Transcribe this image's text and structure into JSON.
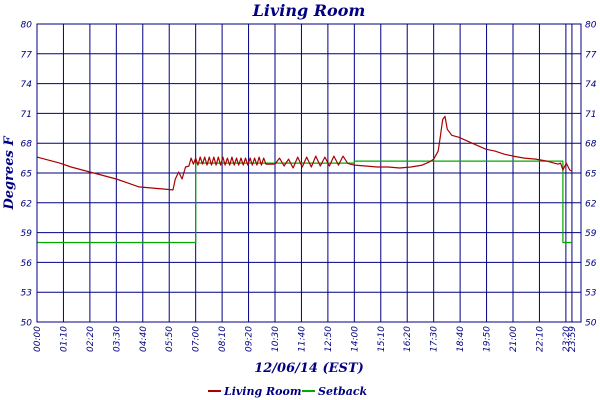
{
  "chart_data": {
    "type": "line",
    "title": "Living Room",
    "xlabel": "12/06/14 (EST)",
    "ylabel": "Degrees F",
    "x_unit": "hours",
    "xlim": [
      0,
      24
    ],
    "ylim": [
      50,
      80
    ],
    "y_ticks": [
      50,
      53,
      56,
      59,
      62,
      65,
      68,
      71,
      74,
      77,
      80
    ],
    "x_ticks": [
      {
        "t": 0,
        "label": "00:00"
      },
      {
        "t": 1.1667,
        "label": "01:10"
      },
      {
        "t": 2.3333,
        "label": "02:20"
      },
      {
        "t": 3.5,
        "label": "03:30"
      },
      {
        "t": 4.6667,
        "label": "04:40"
      },
      {
        "t": 5.8333,
        "label": "05:50"
      },
      {
        "t": 7.0,
        "label": "07:00"
      },
      {
        "t": 8.1667,
        "label": "08:10"
      },
      {
        "t": 9.3333,
        "label": "09:20"
      },
      {
        "t": 10.5,
        "label": "10:30"
      },
      {
        "t": 11.6667,
        "label": "11:40"
      },
      {
        "t": 12.8333,
        "label": "12:50"
      },
      {
        "t": 14.0,
        "label": "14:00"
      },
      {
        "t": 15.1667,
        "label": "15:10"
      },
      {
        "t": 16.3333,
        "label": "16:20"
      },
      {
        "t": 17.5,
        "label": "17:30"
      },
      {
        "t": 18.6667,
        "label": "18:40"
      },
      {
        "t": 19.8333,
        "label": "19:50"
      },
      {
        "t": 21.0,
        "label": "21:00"
      },
      {
        "t": 22.1667,
        "label": "22:10"
      },
      {
        "t": 23.3333,
        "label": "23:20"
      },
      {
        "t": 23.6,
        "label": "23:59"
      }
    ],
    "grid": true,
    "legend_position": "bottom",
    "series": [
      {
        "name": "Living Room",
        "color": "#aa0000",
        "points": [
          [
            0,
            66.6
          ],
          [
            0.5,
            66.3
          ],
          [
            1.0,
            66.0
          ],
          [
            1.5,
            65.6
          ],
          [
            2.0,
            65.3
          ],
          [
            2.5,
            65.0
          ],
          [
            3.0,
            64.7
          ],
          [
            3.5,
            64.4
          ],
          [
            4.0,
            64.0
          ],
          [
            4.5,
            63.6
          ],
          [
            5.0,
            63.5
          ],
          [
            5.5,
            63.4
          ],
          [
            6.0,
            63.3
          ],
          [
            6.1,
            64.4
          ],
          [
            6.25,
            65.1
          ],
          [
            6.4,
            64.4
          ],
          [
            6.55,
            65.6
          ],
          [
            6.7,
            65.7
          ],
          [
            6.8,
            66.5
          ],
          [
            6.9,
            65.9
          ],
          [
            7.0,
            66.5
          ],
          [
            7.1,
            65.8
          ],
          [
            7.2,
            66.6
          ],
          [
            7.3,
            65.9
          ],
          [
            7.4,
            66.6
          ],
          [
            7.5,
            65.8
          ],
          [
            7.6,
            66.6
          ],
          [
            7.7,
            65.8
          ],
          [
            7.8,
            66.6
          ],
          [
            7.9,
            65.8
          ],
          [
            8.0,
            66.6
          ],
          [
            8.1,
            65.8
          ],
          [
            8.2,
            66.6
          ],
          [
            8.3,
            65.8
          ],
          [
            8.4,
            66.5
          ],
          [
            8.5,
            65.8
          ],
          [
            8.6,
            66.6
          ],
          [
            8.7,
            65.8
          ],
          [
            8.8,
            66.5
          ],
          [
            8.9,
            65.8
          ],
          [
            9.0,
            66.5
          ],
          [
            9.1,
            65.8
          ],
          [
            9.2,
            66.5
          ],
          [
            9.3,
            65.8
          ],
          [
            9.4,
            66.5
          ],
          [
            9.5,
            65.8
          ],
          [
            9.6,
            66.5
          ],
          [
            9.7,
            65.8
          ],
          [
            9.8,
            66.6
          ],
          [
            9.9,
            65.8
          ],
          [
            10.0,
            66.5
          ],
          [
            10.1,
            65.9
          ],
          [
            10.5,
            65.9
          ],
          [
            10.7,
            66.5
          ],
          [
            10.9,
            65.7
          ],
          [
            11.1,
            66.4
          ],
          [
            11.3,
            65.5
          ],
          [
            11.5,
            66.6
          ],
          [
            11.7,
            65.6
          ],
          [
            11.9,
            66.6
          ],
          [
            12.1,
            65.6
          ],
          [
            12.3,
            66.7
          ],
          [
            12.5,
            65.7
          ],
          [
            12.7,
            66.6
          ],
          [
            12.9,
            65.7
          ],
          [
            13.1,
            66.7
          ],
          [
            13.3,
            65.8
          ],
          [
            13.5,
            66.7
          ],
          [
            13.7,
            66.0
          ],
          [
            13.8,
            65.9
          ],
          [
            14.0,
            65.8
          ],
          [
            14.5,
            65.7
          ],
          [
            15.0,
            65.6
          ],
          [
            15.5,
            65.6
          ],
          [
            16.0,
            65.5
          ],
          [
            16.5,
            65.6
          ],
          [
            17.0,
            65.8
          ],
          [
            17.3,
            66.1
          ],
          [
            17.5,
            66.4
          ],
          [
            17.7,
            67.2
          ],
          [
            17.8,
            68.8
          ],
          [
            17.9,
            70.4
          ],
          [
            18.0,
            70.7
          ],
          [
            18.1,
            69.4
          ],
          [
            18.3,
            68.8
          ],
          [
            18.6,
            68.6
          ],
          [
            19.0,
            68.2
          ],
          [
            19.4,
            67.8
          ],
          [
            19.8,
            67.4
          ],
          [
            20.2,
            67.2
          ],
          [
            20.6,
            66.9
          ],
          [
            21.0,
            66.7
          ],
          [
            21.5,
            66.5
          ],
          [
            22.0,
            66.4
          ],
          [
            22.5,
            66.2
          ],
          [
            22.8,
            66.0
          ],
          [
            23.0,
            65.9
          ],
          [
            23.1,
            66.0
          ],
          [
            23.2,
            65.3
          ],
          [
            23.35,
            66.0
          ],
          [
            23.5,
            65.3
          ],
          [
            23.6,
            65.2
          ]
        ]
      },
      {
        "name": "Setback",
        "color": "#00aa00",
        "points": [
          [
            0,
            58
          ],
          [
            7.0,
            58
          ],
          [
            7.0,
            66
          ],
          [
            14.0,
            66
          ],
          [
            14.0,
            66.2
          ],
          [
            23.2,
            66.2
          ],
          [
            23.2,
            58
          ],
          [
            23.6,
            58
          ]
        ]
      }
    ]
  }
}
